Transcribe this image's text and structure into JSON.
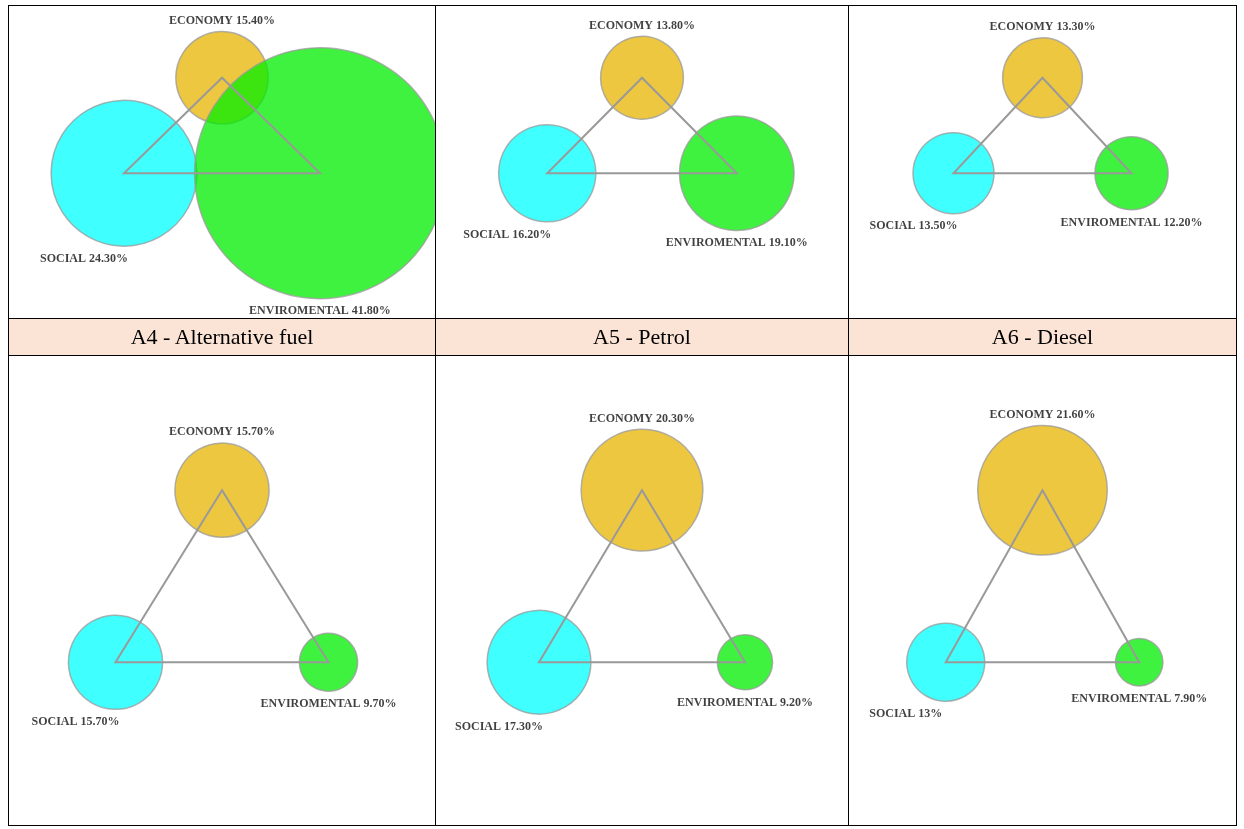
{
  "chart_data": [
    {
      "type": "other",
      "categories": [
        "ECONOMY",
        "SOCIAL",
        "ENVIROMENTAL"
      ],
      "values": [
        15.4,
        24.3,
        41.8
      ],
      "value_labels": [
        "15.40%",
        "24.30%",
        "41.80%"
      ],
      "colors": [
        "#e8b400",
        "#00ffff",
        "#00ee00"
      ]
    },
    {
      "type": "other",
      "categories": [
        "ECONOMY",
        "SOCIAL",
        "ENVIROMENTAL"
      ],
      "values": [
        13.8,
        16.2,
        19.1
      ],
      "value_labels": [
        "13.80%",
        "16.20%",
        "19.10%"
      ],
      "colors": [
        "#e8b400",
        "#00ffff",
        "#00ee00"
      ]
    },
    {
      "type": "other",
      "categories": [
        "ECONOMY",
        "SOCIAL",
        "ENVIROMENTAL"
      ],
      "values": [
        13.3,
        13.5,
        12.2
      ],
      "value_labels": [
        "13.30%",
        "13.50%",
        "12.20%"
      ],
      "colors": [
        "#e8b400",
        "#00ffff",
        "#00ee00"
      ]
    },
    {
      "type": "other",
      "title": "A4 - Alternative fuel",
      "categories": [
        "ECONOMY",
        "SOCIAL",
        "ENVIROMENTAL"
      ],
      "values": [
        15.7,
        15.7,
        9.7
      ],
      "value_labels": [
        "15.70%",
        "15.70%",
        "9.70%"
      ],
      "colors": [
        "#e8b400",
        "#00ffff",
        "#00ee00"
      ]
    },
    {
      "type": "other",
      "title": "A5 - Petrol",
      "categories": [
        "ECONOMY",
        "SOCIAL",
        "ENVIROMENTAL"
      ],
      "values": [
        20.3,
        17.3,
        9.2
      ],
      "value_labels": [
        "20.30%",
        "17.30%",
        "9.20%"
      ],
      "colors": [
        "#e8b400",
        "#00ffff",
        "#00ee00"
      ]
    },
    {
      "type": "other",
      "title": "A6 - Diesel",
      "categories": [
        "ECONOMY",
        "SOCIAL",
        "ENVIROMENTAL"
      ],
      "values": [
        21.6,
        13,
        7.9
      ],
      "value_labels": [
        "21.60%",
        "13%",
        "7.90%"
      ],
      "colors": [
        "#e8b400",
        "#00ffff",
        "#00ee00"
      ]
    }
  ]
}
